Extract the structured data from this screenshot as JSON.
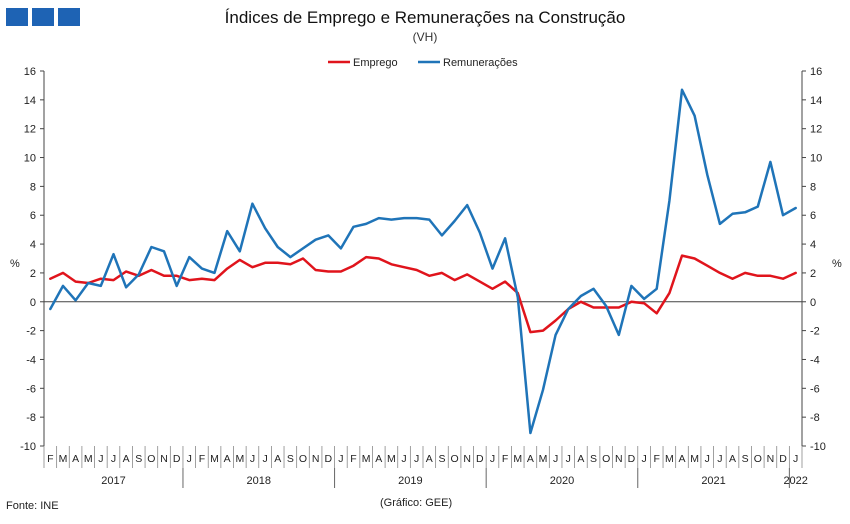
{
  "header": {
    "title": "Índices de Emprego e Remunerações na Construção",
    "subtitle": "(VH)"
  },
  "footer": {
    "source": "Fonte: INE",
    "credit": "(Gráfico: GEE)"
  },
  "chart_data": {
    "type": "line",
    "title": "Índices de Emprego e Remunerações na Construção",
    "subtitle": "(VH)",
    "ylabel_left": "%",
    "ylabel_right": "%",
    "ylim": [
      -10,
      16
    ],
    "yticks": [
      -10,
      -8,
      -6,
      -4,
      -2,
      0,
      2,
      4,
      6,
      8,
      10,
      12,
      14,
      16
    ],
    "grid": false,
    "legend_position": "top-center",
    "x": [
      "F",
      "M",
      "A",
      "M",
      "J",
      "J",
      "A",
      "S",
      "O",
      "N",
      "D",
      "J",
      "F",
      "M",
      "A",
      "M",
      "J",
      "J",
      "A",
      "S",
      "O",
      "N",
      "D",
      "J",
      "F",
      "M",
      "A",
      "M",
      "J",
      "J",
      "A",
      "S",
      "O",
      "N",
      "D",
      "J",
      "F",
      "M",
      "A",
      "M",
      "J",
      "J",
      "A",
      "S",
      "O",
      "N",
      "D",
      "J",
      "F",
      "M",
      "A",
      "M",
      "J",
      "J",
      "A",
      "S",
      "O",
      "N",
      "D",
      "J"
    ],
    "years": [
      {
        "label": "2017",
        "start": 0,
        "end": 10
      },
      {
        "label": "2018",
        "start": 11,
        "end": 22
      },
      {
        "label": "2019",
        "start": 23,
        "end": 34
      },
      {
        "label": "2020",
        "start": 35,
        "end": 46
      },
      {
        "label": "2021",
        "start": 47,
        "end": 58
      },
      {
        "label": "2022",
        "start": 59,
        "end": 59
      }
    ],
    "series": [
      {
        "name": "Emprego",
        "color": "#e0141c",
        "values": [
          1.6,
          2.0,
          1.4,
          1.3,
          1.6,
          1.5,
          2.1,
          1.8,
          2.2,
          1.8,
          1.8,
          1.5,
          1.6,
          1.5,
          2.3,
          2.9,
          2.4,
          2.7,
          2.7,
          2.6,
          3.0,
          2.2,
          2.1,
          2.1,
          2.5,
          3.1,
          3.0,
          2.6,
          2.4,
          2.2,
          1.8,
          2.0,
          1.5,
          1.9,
          1.4,
          0.9,
          1.4,
          0.6,
          -2.1,
          -2.0,
          -1.3,
          -0.5,
          0.0,
          -0.4,
          -0.4,
          -0.4,
          0.0,
          -0.1,
          -0.8,
          0.6,
          3.2,
          3.0,
          2.5,
          2.0,
          1.6,
          2.0,
          1.8,
          1.8,
          1.6,
          2.0
        ]
      },
      {
        "name": "Remunerações",
        "color": "#1f74b8",
        "values": [
          -0.5,
          1.1,
          0.1,
          1.3,
          1.1,
          3.3,
          1.0,
          1.9,
          3.8,
          3.5,
          1.1,
          3.1,
          2.3,
          2.0,
          4.9,
          3.5,
          6.8,
          5.1,
          3.8,
          3.1,
          3.7,
          4.3,
          4.6,
          3.7,
          5.2,
          5.4,
          5.8,
          5.7,
          5.8,
          5.8,
          5.7,
          4.6,
          5.6,
          6.7,
          4.8,
          2.3,
          4.4,
          0.3,
          -9.1,
          -6.1,
          -2.3,
          -0.5,
          0.4,
          0.9,
          -0.3,
          -2.3,
          1.1,
          0.2,
          0.9,
          7.0,
          14.7,
          12.9,
          8.8,
          5.4,
          6.1,
          6.2,
          6.6,
          9.7,
          6.0,
          6.5
        ]
      }
    ]
  }
}
